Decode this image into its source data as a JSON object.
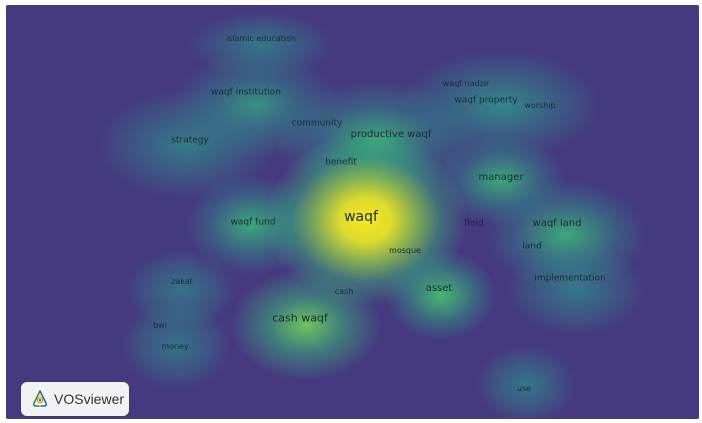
{
  "colors": {
    "background": "#45397f",
    "low": "#2f8c8c",
    "mid": "#3bb37a",
    "high": "#f8e721"
  },
  "brand": {
    "text": "VOSviewer",
    "icon": "vosviewer-logo-icon"
  },
  "terms": {
    "islamic_education": "islamic education",
    "waqf_institution": "waqf institution",
    "waqf_nadzir": "waqf nadzir",
    "waqf_property": "waqf property",
    "worship": "worship",
    "community": "community",
    "productive_waqf": "productive waqf",
    "strategy": "strategy",
    "benefit": "benefit",
    "manager": "manager",
    "waqf": "waqf",
    "waqf_fund": "waqf fund",
    "field": "field",
    "waqf_land": "waqf land",
    "mosque": "mosque",
    "land": "land",
    "zakat": "zakat",
    "implementation": "implementation",
    "cash": "cash",
    "asset": "asset",
    "cash_waqf": "cash waqf",
    "bwi": "bwi",
    "money": "money",
    "use": "use"
  }
}
